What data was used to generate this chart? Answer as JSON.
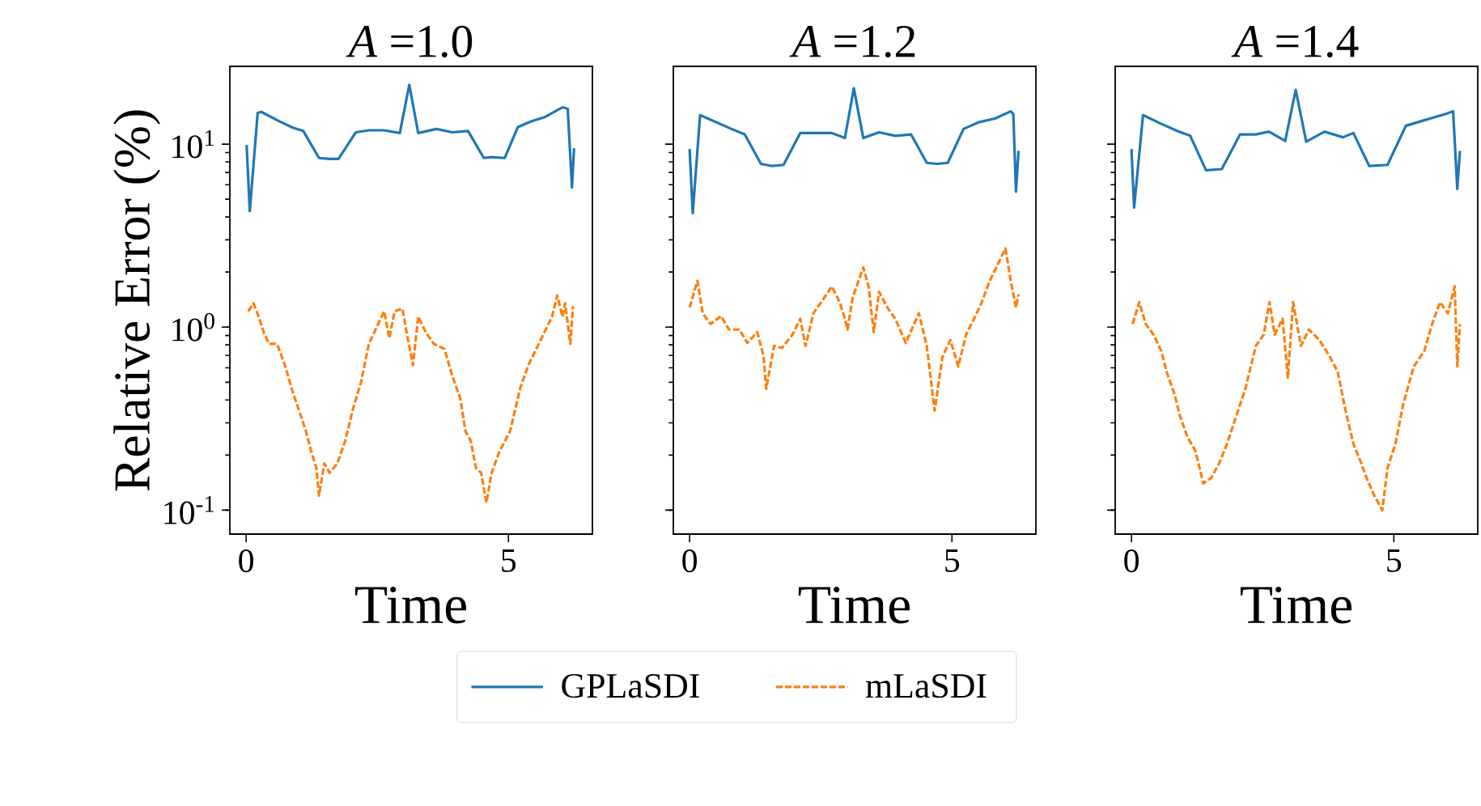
{
  "chart_data": [
    {
      "type": "line",
      "title": "*A* =1.0",
      "xlabel": "Time",
      "ylabel": "Relative Error (%)",
      "log": "y",
      "xlim": [
        -0.31,
        6.6
      ],
      "ylim": [
        0.074,
        26.6
      ],
      "xticks": [
        0,
        5
      ],
      "yticks": [
        {
          "value": 0.1,
          "label": "10$^{-1}$"
        },
        {
          "value": 1,
          "label": "10$^{0}$"
        },
        {
          "value": 10,
          "label": "10$^{1}$"
        }
      ],
      "legend": false,
      "series": [
        {
          "color": "#1f77b4",
          "line_style": "solid",
          "x": [
            0.01,
            0.07,
            0.22,
            0.29,
            0.64,
            0.89,
            1.09,
            1.39,
            1.59,
            1.76,
            2.09,
            2.34,
            2.63,
            2.93,
            3.11,
            3.28,
            3.63,
            3.93,
            4.23,
            4.53,
            4.68,
            4.93,
            5.18,
            5.43,
            5.68,
            6.03,
            6.13,
            6.21,
            6.25
          ],
          "values": [
            9.9,
            4.3,
            14.8,
            15.0,
            13.3,
            12.3,
            11.8,
            8.4,
            8.3,
            8.3,
            11.6,
            11.9,
            11.9,
            11.5,
            21.1,
            11.5,
            12.1,
            11.6,
            11.8,
            8.4,
            8.5,
            8.4,
            12.4,
            13.3,
            14.0,
            15.9,
            15.6,
            5.8,
            9.5
          ]
        },
        {
          "color": "#ff7f0e",
          "line_style": "dashed",
          "x": [
            0.04,
            0.14,
            0.24,
            0.34,
            0.44,
            0.59,
            0.74,
            0.89,
            1.04,
            1.14,
            1.24,
            1.34,
            1.39,
            1.49,
            1.59,
            1.74,
            1.89,
            2.04,
            2.19,
            2.34,
            2.53,
            2.63,
            2.73,
            2.83,
            2.98,
            3.08,
            3.18,
            3.28,
            3.43,
            3.58,
            3.78,
            3.93,
            4.08,
            4.18,
            4.28,
            4.38,
            4.48,
            4.58,
            4.68,
            4.83,
            5.03,
            5.23,
            5.38,
            5.53,
            5.68,
            5.83,
            5.93,
            6.03,
            6.08,
            6.18,
            6.23
          ],
          "values": [
            1.22,
            1.35,
            1.14,
            0.93,
            0.81,
            0.81,
            0.62,
            0.44,
            0.33,
            0.27,
            0.21,
            0.17,
            0.12,
            0.18,
            0.16,
            0.18,
            0.24,
            0.36,
            0.5,
            0.81,
            1.06,
            1.22,
            0.87,
            1.22,
            1.26,
            0.87,
            0.62,
            1.14,
            0.93,
            0.81,
            0.76,
            0.54,
            0.41,
            0.27,
            0.24,
            0.17,
            0.16,
            0.11,
            0.16,
            0.21,
            0.27,
            0.47,
            0.62,
            0.76,
            0.93,
            1.14,
            1.49,
            1.14,
            1.35,
            0.81,
            1.3
          ]
        }
      ]
    },
    {
      "type": "line",
      "title": "*A* =1.2",
      "xlabel": "Time",
      "log": "y",
      "tick_labels": "x",
      "xlim": [
        -0.31,
        6.6
      ],
      "ylim": [
        0.074,
        26.6
      ],
      "xticks": [
        0,
        5
      ],
      "yticks": [
        {
          "value": 0.1,
          "label": null
        },
        {
          "value": 1,
          "label": null
        },
        {
          "value": 10,
          "label": null
        }
      ],
      "legend": "bottom",
      "series": [
        {
          "name": "GPLaSDI",
          "color": "#1f77b4",
          "line_style": "solid",
          "x": [
            0,
            0.06,
            0.2,
            0.5,
            0.8,
            1.05,
            1.36,
            1.56,
            1.79,
            2.11,
            2.41,
            2.71,
            2.96,
            3.13,
            3.31,
            3.61,
            3.92,
            4.22,
            4.52,
            4.72,
            4.92,
            5.22,
            5.52,
            5.82,
            6.12,
            6.17,
            6.22,
            6.27
          ],
          "values": [
            9.4,
            4.2,
            14.4,
            13.2,
            12.1,
            11.3,
            7.8,
            7.6,
            7.7,
            11.5,
            11.5,
            11.5,
            10.8,
            20.2,
            10.8,
            11.6,
            11.1,
            11.3,
            7.9,
            7.8,
            7.9,
            12.1,
            13.2,
            13.8,
            15.1,
            14.6,
            5.5,
            9.2
          ]
        },
        {
          "name": "mLaSDI",
          "color": "#ff7f0e",
          "line_style": "dashed",
          "x": [
            0,
            0.15,
            0.25,
            0.4,
            0.6,
            0.75,
            0.95,
            1.1,
            1.29,
            1.41,
            1.46,
            1.61,
            1.76,
            1.96,
            2.11,
            2.21,
            2.36,
            2.51,
            2.71,
            2.86,
            2.96,
            3.01,
            3.11,
            3.31,
            3.41,
            3.51,
            3.61,
            3.77,
            3.92,
            4.12,
            4.37,
            4.52,
            4.67,
            4.82,
            4.97,
            5.12,
            5.27,
            5.42,
            5.57,
            5.72,
            5.82,
            6.02,
            6.12,
            6.22,
            6.27
          ],
          "values": [
            1.28,
            1.79,
            1.19,
            1.04,
            1.15,
            0.97,
            0.97,
            0.82,
            0.94,
            0.69,
            0.46,
            0.79,
            0.77,
            0.91,
            1.11,
            0.79,
            1.19,
            1.37,
            1.67,
            1.37,
            1.11,
            0.97,
            1.46,
            2.12,
            1.67,
            0.94,
            1.56,
            1.28,
            1.11,
            0.82,
            1.19,
            0.79,
            0.35,
            0.69,
            0.85,
            0.61,
            0.91,
            1.11,
            1.37,
            1.79,
            2.05,
            2.69,
            1.79,
            1.28,
            1.51
          ]
        }
      ]
    },
    {
      "type": "line",
      "title": "*A* =1.4",
      "xlabel": "Time",
      "log": "y",
      "tick_labels": "x",
      "xlim": [
        -0.31,
        6.6
      ],
      "ylim": [
        0.074,
        26.6
      ],
      "xticks": [
        0,
        5
      ],
      "yticks": [
        {
          "value": 0.1,
          "label": null
        },
        {
          "value": 1,
          "label": null
        },
        {
          "value": 10,
          "label": null
        }
      ],
      "legend": false,
      "series": [
        {
          "color": "#1f77b4",
          "line_style": "solid",
          "x": [
            0,
            0.05,
            0.22,
            0.57,
            0.87,
            1.12,
            1.42,
            1.72,
            2.07,
            2.37,
            2.62,
            2.93,
            3.13,
            3.33,
            3.68,
            4.03,
            4.23,
            4.53,
            4.88,
            5.23,
            5.58,
            5.98,
            6.13,
            6.21,
            6.26
          ],
          "values": [
            9.4,
            4.5,
            14.4,
            12.9,
            11.8,
            11.1,
            7.2,
            7.3,
            11.3,
            11.3,
            11.7,
            10.4,
            19.8,
            10.3,
            11.7,
            10.9,
            11.5,
            7.6,
            7.7,
            12.6,
            13.5,
            14.6,
            15.1,
            5.7,
            9.2
          ]
        },
        {
          "color": "#ff7f0e",
          "line_style": "dashed",
          "x": [
            0.02,
            0.15,
            0.27,
            0.42,
            0.57,
            0.67,
            0.82,
            0.92,
            1.07,
            1.22,
            1.37,
            1.52,
            1.67,
            1.82,
            1.97,
            2.17,
            2.37,
            2.52,
            2.63,
            2.73,
            2.88,
            2.98,
            3.08,
            3.23,
            3.38,
            3.58,
            3.78,
            3.93,
            4.08,
            4.23,
            4.38,
            4.48,
            4.63,
            4.78,
            4.88,
            5.03,
            5.18,
            5.38,
            5.58,
            5.73,
            5.88,
            6.03,
            6.16,
            6.21,
            6.26
          ],
          "values": [
            1.04,
            1.37,
            1.04,
            0.91,
            0.74,
            0.57,
            0.43,
            0.33,
            0.25,
            0.21,
            0.14,
            0.15,
            0.18,
            0.23,
            0.31,
            0.46,
            0.79,
            0.91,
            1.37,
            0.91,
            1.11,
            0.53,
            1.37,
            0.79,
            0.97,
            0.85,
            0.69,
            0.57,
            0.35,
            0.23,
            0.18,
            0.15,
            0.12,
            0.1,
            0.17,
            0.23,
            0.38,
            0.61,
            0.74,
            1.04,
            1.37,
            1.19,
            1.67,
            0.61,
            1.04
          ]
        }
      ]
    }
  ]
}
